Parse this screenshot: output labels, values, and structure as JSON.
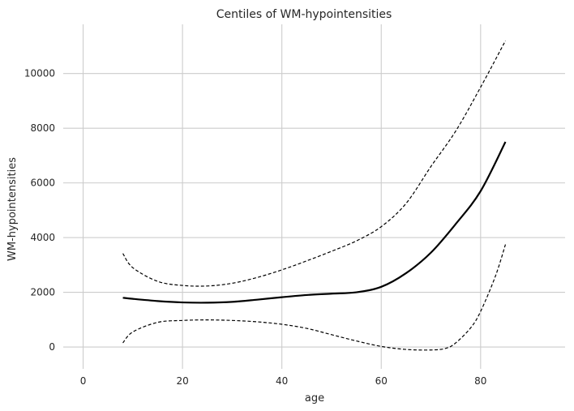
{
  "chart_data": {
    "type": "line",
    "title": "Centiles of WM-hypointensities",
    "xlabel": "age",
    "ylabel": "WM-hypointensities",
    "xlim": [
      -4,
      97
    ],
    "ylim": [
      -800,
      11800
    ],
    "xticks": [
      0,
      20,
      40,
      60,
      80
    ],
    "yticks": [
      0,
      2000,
      4000,
      6000,
      8000,
      10000
    ],
    "grid": true,
    "colors": {
      "line": "#000000",
      "grid": "#cccccc",
      "text": "#262626"
    },
    "series": [
      {
        "style": "dashed",
        "x": [
          8,
          10,
          15,
          20,
          25,
          30,
          35,
          40,
          45,
          50,
          55,
          60,
          65,
          70,
          75,
          80,
          85
        ],
        "y": [
          3420,
          2900,
          2400,
          2250,
          2230,
          2330,
          2540,
          2820,
          3150,
          3500,
          3880,
          4400,
          5250,
          6600,
          7900,
          9500,
          11200
        ]
      },
      {
        "style": "solid",
        "x": [
          8,
          10,
          15,
          20,
          25,
          30,
          35,
          40,
          45,
          50,
          55,
          60,
          65,
          70,
          75,
          80,
          85
        ],
        "y": [
          1800,
          1760,
          1680,
          1630,
          1620,
          1650,
          1730,
          1820,
          1900,
          1950,
          2000,
          2200,
          2700,
          3450,
          4500,
          5700,
          7500
        ]
      },
      {
        "style": "dashed",
        "x": [
          8,
          10,
          15,
          20,
          25,
          30,
          35,
          40,
          45,
          50,
          55,
          60,
          65,
          70,
          73,
          75,
          78,
          80,
          83,
          85
        ],
        "y": [
          150,
          550,
          900,
          970,
          990,
          970,
          920,
          830,
          680,
          450,
          220,
          20,
          -90,
          -110,
          -50,
          150,
          700,
          1300,
          2600,
          3750
        ]
      }
    ]
  }
}
